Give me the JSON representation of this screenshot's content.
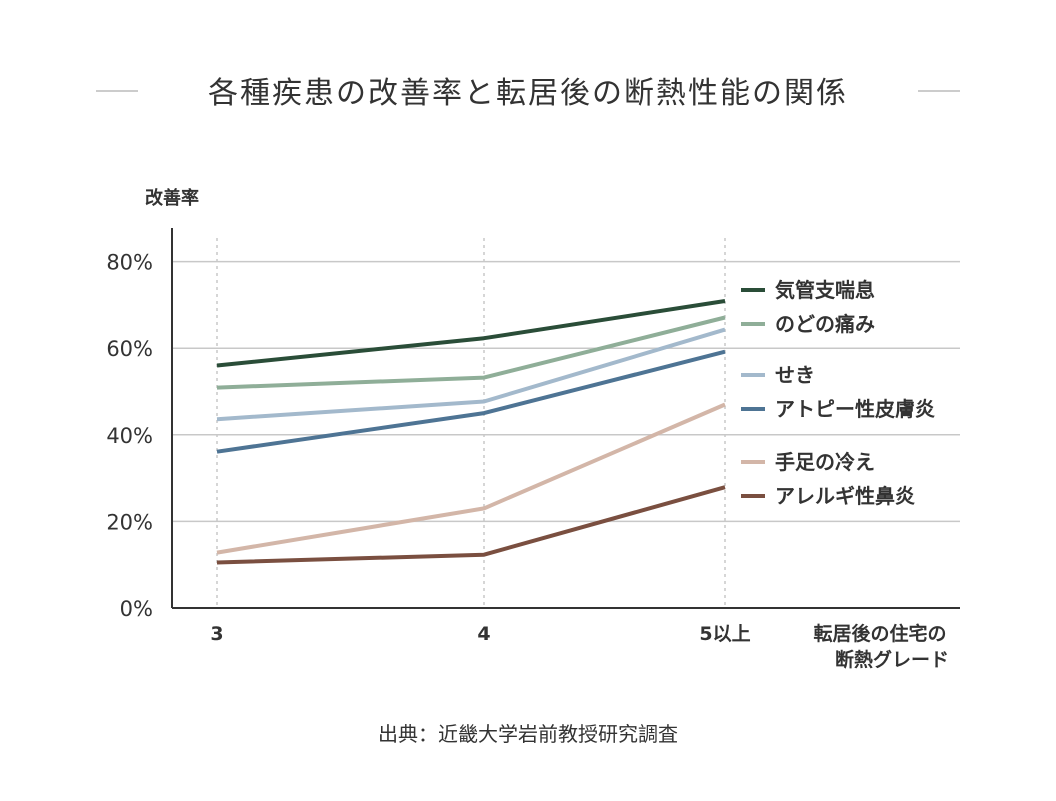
{
  "title": "各種疾患の改善率と転居後の断熱性能の関係",
  "source": "出典：近畿大学岩前教授研究調査",
  "chart_data": {
    "type": "line",
    "title": "各種疾患の改善率と転居後の断熱性能の関係",
    "ylabel": "改善率",
    "xlabel_lines": [
      "転居後の住宅の",
      "断熱グレード"
    ],
    "categories": [
      "3",
      "4",
      "5以上"
    ],
    "y_ticks": [
      "0%",
      "20%",
      "40%",
      "60%",
      "80%"
    ],
    "ylim": [
      0,
      80
    ],
    "grid": true,
    "legend_position": "right",
    "series": [
      {
        "name": "気管支喘息",
        "color": "#2a4d38",
        "values": [
          56,
          62.3,
          70.9
        ]
      },
      {
        "name": "のどの痛み",
        "color": "#8fae98",
        "values": [
          50.9,
          53.2,
          67.1
        ]
      },
      {
        "name": "せき",
        "color": "#a3b9cc",
        "values": [
          43.6,
          47.7,
          64.3
        ]
      },
      {
        "name": "アトピー性皮膚炎",
        "color": "#4e7494",
        "values": [
          36.1,
          45,
          59.2
        ]
      },
      {
        "name": "手足の冷え",
        "color": "#d3b6a8",
        "values": [
          12.8,
          23,
          47
        ]
      },
      {
        "name": "アレルギ性鼻炎",
        "color": "#7a4f40",
        "values": [
          10.5,
          12.3,
          27.9
        ]
      }
    ]
  }
}
